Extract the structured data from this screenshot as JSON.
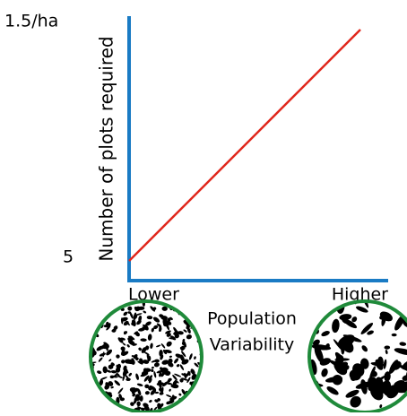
{
  "y_axis": {
    "title": "Number of plots required",
    "top_label": "1.5/ha",
    "bottom_label": "5"
  },
  "x_axis": {
    "left_label": "Lower",
    "right_label": "Higher",
    "title_line1": "Population",
    "title_line2": "Variability"
  }
}
